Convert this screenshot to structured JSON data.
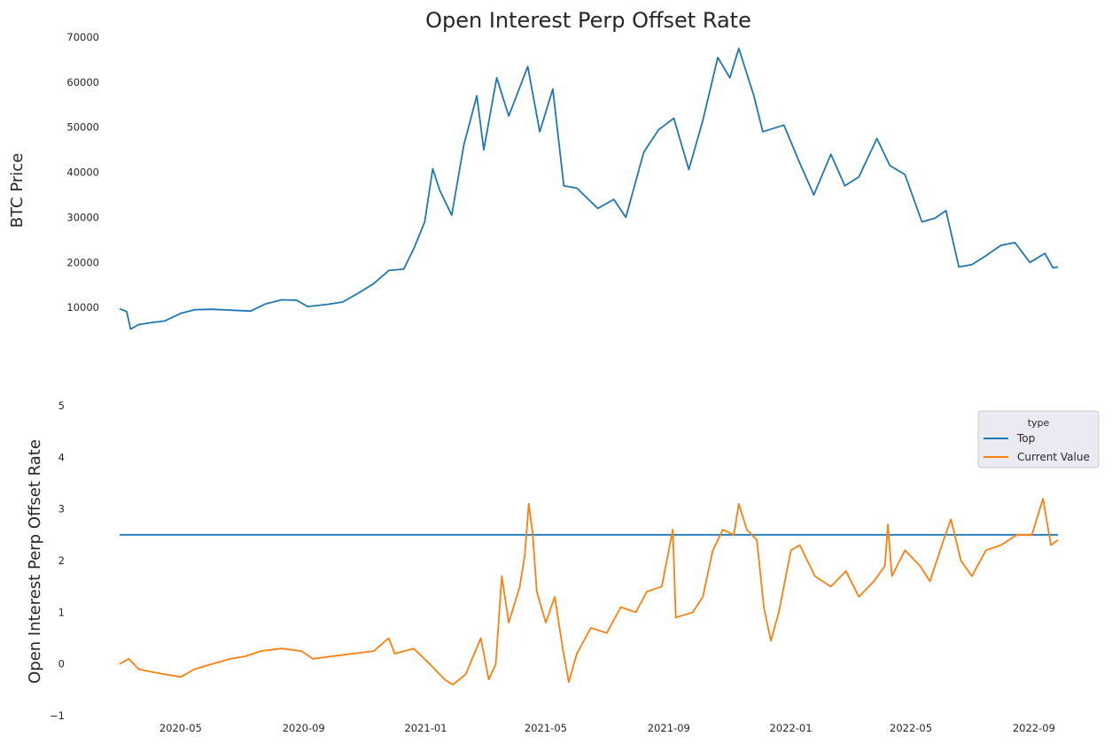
{
  "chart_data": [
    {
      "type": "line",
      "title": "Open Interest Perp Offset Rate",
      "ylabel": "BTC  Price",
      "xlabel": "",
      "x_range": [
        "2020-03-01",
        "2022-09-25"
      ],
      "ylim": [
        0,
        70000
      ],
      "y_ticks": [
        10000,
        20000,
        30000,
        40000,
        50000,
        60000,
        70000
      ],
      "grid": false,
      "series": [
        {
          "color": "#1f77b4",
          "points": [
            [
              "2020-03-01",
              9700
            ],
            [
              "2020-03-08",
              9100
            ],
            [
              "2020-03-12",
              5200
            ],
            [
              "2020-03-20",
              6200
            ],
            [
              "2020-04-01",
              6600
            ],
            [
              "2020-04-15",
              7000
            ],
            [
              "2020-05-01",
              8700
            ],
            [
              "2020-05-15",
              9500
            ],
            [
              "2020-06-01",
              9600
            ],
            [
              "2020-06-20",
              9400
            ],
            [
              "2020-07-10",
              9200
            ],
            [
              "2020-07-25",
              10800
            ],
            [
              "2020-08-10",
              11700
            ],
            [
              "2020-08-25",
              11600
            ],
            [
              "2020-09-05",
              10200
            ],
            [
              "2020-09-25",
              10700
            ],
            [
              "2020-10-10",
              11200
            ],
            [
              "2020-10-25",
              13100
            ],
            [
              "2020-11-10",
              15300
            ],
            [
              "2020-11-25",
              18200
            ],
            [
              "2020-12-10",
              18500
            ],
            [
              "2020-12-20",
              23000
            ],
            [
              "2020-12-31",
              29000
            ],
            [
              "2021-01-08",
              40800
            ],
            [
              "2021-01-15",
              36000
            ],
            [
              "2021-01-27",
              30500
            ],
            [
              "2021-02-08",
              46000
            ],
            [
              "2021-02-21",
              57000
            ],
            [
              "2021-02-28",
              45000
            ],
            [
              "2021-03-13",
              61000
            ],
            [
              "2021-03-25",
              52500
            ],
            [
              "2021-04-13",
              63500
            ],
            [
              "2021-04-25",
              49000
            ],
            [
              "2021-05-08",
              58500
            ],
            [
              "2021-05-19",
              37000
            ],
            [
              "2021-06-01",
              36500
            ],
            [
              "2021-06-22",
              32000
            ],
            [
              "2021-07-08",
              34000
            ],
            [
              "2021-07-20",
              30000
            ],
            [
              "2021-08-07",
              44500
            ],
            [
              "2021-08-22",
              49500
            ],
            [
              "2021-09-06",
              52000
            ],
            [
              "2021-09-21",
              40600
            ],
            [
              "2021-10-05",
              51500
            ],
            [
              "2021-10-20",
              65500
            ],
            [
              "2021-11-01",
              61000
            ],
            [
              "2021-11-10",
              67500
            ],
            [
              "2021-11-25",
              57000
            ],
            [
              "2021-12-04",
              49000
            ],
            [
              "2021-12-25",
              50500
            ],
            [
              "2022-01-10",
              42000
            ],
            [
              "2022-01-24",
              35000
            ],
            [
              "2022-02-10",
              44000
            ],
            [
              "2022-02-24",
              37000
            ],
            [
              "2022-03-10",
              39000
            ],
            [
              "2022-03-28",
              47500
            ],
            [
              "2022-04-10",
              41500
            ],
            [
              "2022-04-25",
              39500
            ],
            [
              "2022-05-12",
              29000
            ],
            [
              "2022-05-25",
              29800
            ],
            [
              "2022-06-05",
              31500
            ],
            [
              "2022-06-18",
              19000
            ],
            [
              "2022-07-01",
              19500
            ],
            [
              "2022-07-15",
              21500
            ],
            [
              "2022-07-30",
              23800
            ],
            [
              "2022-08-13",
              24400
            ],
            [
              "2022-08-28",
              20000
            ],
            [
              "2022-09-12",
              22000
            ],
            [
              "2022-09-20",
              18800
            ],
            [
              "2022-09-25",
              19000
            ]
          ]
        }
      ]
    },
    {
      "type": "line",
      "title": "",
      "ylabel": "Open Interest Perp Offset Rate",
      "xlabel": "",
      "x_range": [
        "2020-03-01",
        "2022-09-25"
      ],
      "x_ticks": [
        "2020-05",
        "2020-09",
        "2021-01",
        "2021-05",
        "2021-09",
        "2022-01",
        "2022-05",
        "2022-09"
      ],
      "ylim": [
        -1,
        5
      ],
      "y_ticks": [
        -1,
        0,
        1,
        2,
        3,
        4,
        5
      ],
      "grid": false,
      "legend": {
        "title": "type",
        "placement": "top-right"
      },
      "series": [
        {
          "name": "Top",
          "color": "#1f77b4",
          "points": [
            [
              "2020-03-01",
              2.5
            ],
            [
              "2022-09-25",
              2.5
            ]
          ]
        },
        {
          "name": "Current Value",
          "color": "#ff7f0e",
          "points": [
            [
              "2020-03-01",
              0.0
            ],
            [
              "2020-03-10",
              0.1
            ],
            [
              "2020-03-20",
              -0.1
            ],
            [
              "2020-04-01",
              -0.15
            ],
            [
              "2020-04-15",
              -0.2
            ],
            [
              "2020-05-01",
              -0.25
            ],
            [
              "2020-05-15",
              -0.1
            ],
            [
              "2020-06-01",
              0.0
            ],
            [
              "2020-06-20",
              0.1
            ],
            [
              "2020-07-05",
              0.15
            ],
            [
              "2020-07-20",
              0.25
            ],
            [
              "2020-08-10",
              0.3
            ],
            [
              "2020-08-30",
              0.25
            ],
            [
              "2020-09-10",
              0.1
            ],
            [
              "2020-09-30",
              0.15
            ],
            [
              "2020-10-20",
              0.2
            ],
            [
              "2020-11-10",
              0.25
            ],
            [
              "2020-11-25",
              0.5
            ],
            [
              "2020-12-01",
              0.2
            ],
            [
              "2020-12-20",
              0.3
            ],
            [
              "2021-01-05",
              0.0
            ],
            [
              "2021-01-20",
              -0.3
            ],
            [
              "2021-01-28",
              -0.4
            ],
            [
              "2021-02-10",
              -0.2
            ],
            [
              "2021-02-25",
              0.5
            ],
            [
              "2021-03-05",
              -0.3
            ],
            [
              "2021-03-12",
              0.0
            ],
            [
              "2021-03-18",
              1.7
            ],
            [
              "2021-03-25",
              0.8
            ],
            [
              "2021-04-05",
              1.5
            ],
            [
              "2021-04-10",
              2.1
            ],
            [
              "2021-04-14",
              3.1
            ],
            [
              "2021-04-18",
              2.5
            ],
            [
              "2021-04-22",
              1.4
            ],
            [
              "2021-05-01",
              0.8
            ],
            [
              "2021-05-10",
              1.3
            ],
            [
              "2021-05-18",
              0.3
            ],
            [
              "2021-05-24",
              -0.35
            ],
            [
              "2021-06-01",
              0.2
            ],
            [
              "2021-06-15",
              0.7
            ],
            [
              "2021-07-01",
              0.6
            ],
            [
              "2021-07-15",
              1.1
            ],
            [
              "2021-07-30",
              1.0
            ],
            [
              "2021-08-10",
              1.4
            ],
            [
              "2021-08-25",
              1.5
            ],
            [
              "2021-09-05",
              2.6
            ],
            [
              "2021-09-08",
              0.9
            ],
            [
              "2021-09-25",
              1.0
            ],
            [
              "2021-10-05",
              1.3
            ],
            [
              "2021-10-15",
              2.2
            ],
            [
              "2021-10-25",
              2.6
            ],
            [
              "2021-11-05",
              2.5
            ],
            [
              "2021-11-10",
              3.1
            ],
            [
              "2021-11-18",
              2.6
            ],
            [
              "2021-11-28",
              2.4
            ],
            [
              "2021-12-05",
              1.1
            ],
            [
              "2021-12-12",
              0.45
            ],
            [
              "2021-12-20",
              1.0
            ],
            [
              "2022-01-01",
              2.2
            ],
            [
              "2022-01-10",
              2.3
            ],
            [
              "2022-01-25",
              1.7
            ],
            [
              "2022-02-10",
              1.5
            ],
            [
              "2022-02-25",
              1.8
            ],
            [
              "2022-03-10",
              1.3
            ],
            [
              "2022-03-25",
              1.6
            ],
            [
              "2022-04-05",
              1.9
            ],
            [
              "2022-04-08",
              2.7
            ],
            [
              "2022-04-12",
              1.7
            ],
            [
              "2022-04-25",
              2.2
            ],
            [
              "2022-05-10",
              1.9
            ],
            [
              "2022-05-20",
              1.6
            ],
            [
              "2022-06-01",
              2.3
            ],
            [
              "2022-06-10",
              2.8
            ],
            [
              "2022-06-20",
              2.0
            ],
            [
              "2022-07-01",
              1.7
            ],
            [
              "2022-07-15",
              2.2
            ],
            [
              "2022-07-30",
              2.3
            ],
            [
              "2022-08-15",
              2.5
            ],
            [
              "2022-08-30",
              2.5
            ],
            [
              "2022-09-10",
              3.2
            ],
            [
              "2022-09-18",
              2.3
            ],
            [
              "2022-09-25",
              2.4
            ]
          ]
        }
      ]
    }
  ]
}
